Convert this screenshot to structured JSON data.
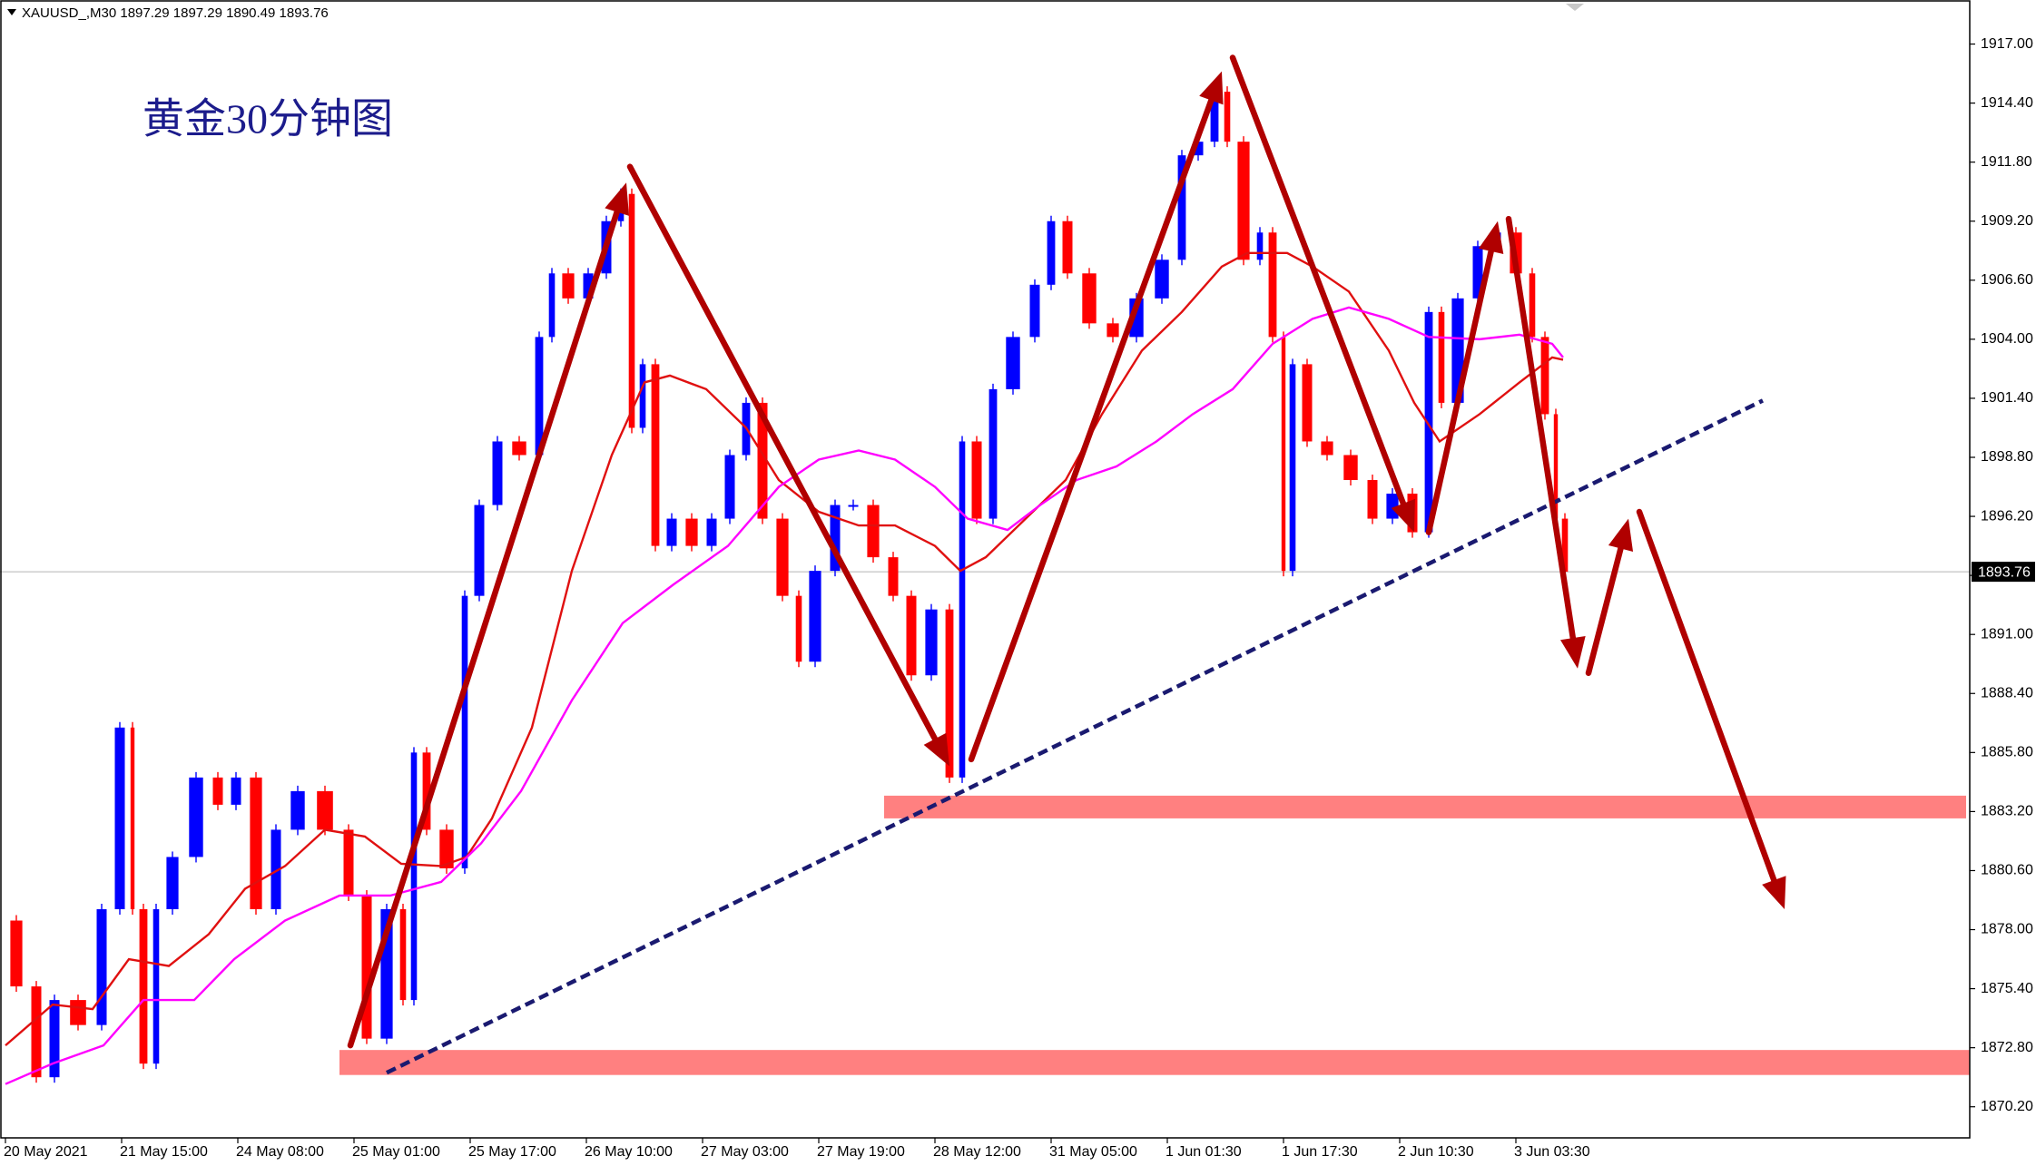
{
  "chart_data": {
    "type": "candlestick",
    "title": "XAUUSD_,M30  1897.29 1897.29 1890.49 1893.76",
    "annotation": "黄金30分钟图",
    "xlim": [
      0,
      541
    ],
    "ylim": [
      1868.83,
      1918.94
    ],
    "xticks": [
      {
        "value": 0,
        "label": "20 May 2021"
      },
      {
        "value": 32,
        "label": "21 May 15:00"
      },
      {
        "value": 64,
        "label": "24 May 08:00"
      },
      {
        "value": 96,
        "label": "25 May 01:00"
      },
      {
        "value": 128,
        "label": "25 May 17:00"
      },
      {
        "value": 160,
        "label": "26 May 10:00"
      },
      {
        "value": 192,
        "label": "27 May 03:00"
      },
      {
        "value": 224,
        "label": "27 May 19:00"
      },
      {
        "value": 256,
        "label": "28 May 12:00"
      },
      {
        "value": 288,
        "label": "31 May 05:00"
      },
      {
        "value": 320,
        "label": "1 Jun 01:30"
      },
      {
        "value": 352,
        "label": "1 Jun 17:30"
      },
      {
        "value": 384,
        "label": "2 Jun 10:30"
      },
      {
        "value": 416,
        "label": "3 Jun 03:30"
      }
    ],
    "yticks": [
      {
        "value": 1870.2,
        "label": "1870.20"
      },
      {
        "value": 1872.8,
        "label": "1872.80"
      },
      {
        "value": 1875.4,
        "label": "1875.40"
      },
      {
        "value": 1878,
        "label": "1878.00"
      },
      {
        "value": 1880.6,
        "label": "1880.60"
      },
      {
        "value": 1883.2,
        "label": "1883.20"
      },
      {
        "value": 1885.8,
        "label": "1885.80"
      },
      {
        "value": 1888.4,
        "label": "1888.40"
      },
      {
        "value": 1891,
        "label": "1891.00"
      },
      {
        "value": 1893.6,
        "label": "1893.60"
      },
      {
        "value": 1896.2,
        "label": "1896.20"
      },
      {
        "value": 1898.8,
        "label": "1898.80"
      },
      {
        "value": 1901.4,
        "label": "1901.40"
      },
      {
        "value": 1904,
        "label": "1904.00"
      },
      {
        "value": 1906.6,
        "label": "1906.60"
      },
      {
        "value": 1909.2,
        "label": "1909.20"
      },
      {
        "value": 1911.8,
        "label": "1911.80"
      },
      {
        "value": 1914.4,
        "label": "1914.40"
      },
      {
        "value": 1917,
        "label": "1917.00"
      }
    ],
    "current_price": 1893.76,
    "up_color": "#0000ff",
    "down_color": "#ff0000",
    "price": {
      "x": [
        0,
        6,
        11,
        16,
        24,
        29,
        34,
        36,
        40,
        43,
        49,
        56,
        61,
        66,
        72,
        77,
        84,
        92,
        97,
        102,
        108,
        111,
        114,
        118,
        125,
        128,
        133,
        138,
        145,
        149,
        152,
        158,
        163,
        168,
        171,
        174,
        177,
        181,
        186,
        192,
        197,
        202,
        206,
        211,
        217,
        220,
        226,
        231,
        236,
        242,
        247,
        252,
        258,
        262,
        265,
        270,
        274,
        281,
        286,
        290,
        295,
        302,
        308,
        315,
        322,
        326,
        331,
        335,
        338,
        344,
        347,
        351,
        353,
        356,
        361,
        367,
        374,
        379,
        385,
        390,
        394,
        397,
        403,
        408,
        413,
        419,
        422,
        426,
        428,
        431
      ],
      "values": [
        1878.4,
        1875.5,
        1871.5,
        1874.9,
        1873.8,
        1878.9,
        1886.9,
        1878.9,
        1872.1,
        1878.9,
        1881.2,
        1884.7,
        1883.5,
        1884.7,
        1878.9,
        1882.4,
        1884.1,
        1882.4,
        1879.5,
        1873.2,
        1878.9,
        1874.9,
        1885.8,
        1882.4,
        1880.7,
        1892.7,
        1896.7,
        1899.5,
        1898.9,
        1904.1,
        1906.9,
        1905.8,
        1906.9,
        1909.2,
        1910.4,
        1900.1,
        1902.9,
        1894.9,
        1896.1,
        1894.9,
        1896.1,
        1898.9,
        1901.2,
        1896.1,
        1892.7,
        1889.8,
        1893.8,
        1896.7,
        1896.7,
        1894.4,
        1892.7,
        1889.2,
        1892.1,
        1884.7,
        1899.5,
        1896.1,
        1901.8,
        1904.1,
        1906.4,
        1909.2,
        1906.9,
        1904.7,
        1904.1,
        1905.8,
        1907.5,
        1912.1,
        1912.7,
        1914.9,
        1912.7,
        1907.5,
        1908.7,
        1904.1,
        1893.8,
        1902.9,
        1899.5,
        1898.9,
        1897.8,
        1896.1,
        1897.2,
        1895.5,
        1905.2,
        1901.2,
        1905.8,
        1908.1,
        1908.7,
        1906.9,
        1904.1,
        1900.7,
        1896.1,
        1893.76
      ]
    },
    "series": [
      {
        "color": "#e01010",
        "x": [
          0,
          13,
          24,
          34,
          45,
          56,
          66,
          77,
          88,
          99,
          109,
          120,
          127,
          134,
          145,
          156,
          167,
          176,
          183,
          193,
          204,
          213,
          224,
          235,
          245,
          256,
          263,
          270,
          281,
          292,
          302,
          313,
          324,
          335,
          342,
          353,
          360,
          370,
          381,
          388,
          395,
          406,
          417,
          426,
          429
        ],
        "values": [
          1872.9,
          1874.7,
          1874.5,
          1876.7,
          1876.4,
          1877.8,
          1879.8,
          1880.8,
          1882.4,
          1882.1,
          1880.9,
          1880.8,
          1881.2,
          1882.9,
          1886.9,
          1893.8,
          1898.9,
          1902.1,
          1902.4,
          1901.8,
          1900.1,
          1897.8,
          1896.4,
          1895.8,
          1895.8,
          1894.9,
          1893.8,
          1894.4,
          1896.1,
          1897.8,
          1900.7,
          1903.5,
          1905.2,
          1907.2,
          1907.8,
          1907.8,
          1907.2,
          1906.1,
          1903.5,
          1901.2,
          1899.5,
          1900.7,
          1902.1,
          1903.2,
          1903.1
        ]
      },
      {
        "color": "#ff00ff",
        "x": [
          0,
          13,
          27,
          38,
          52,
          63,
          77,
          92,
          106,
          120,
          131,
          142,
          156,
          170,
          184,
          199,
          213,
          224,
          235,
          245,
          256,
          265,
          276,
          285,
          295,
          306,
          317,
          327,
          338,
          349,
          360,
          370,
          381,
          392,
          406,
          417,
          426,
          429
        ],
        "values": [
          1871.2,
          1872.1,
          1872.9,
          1874.9,
          1874.9,
          1876.7,
          1878.4,
          1879.5,
          1879.5,
          1880.1,
          1881.8,
          1884.1,
          1888.1,
          1891.5,
          1893.2,
          1894.9,
          1897.5,
          1898.7,
          1899.1,
          1898.7,
          1897.5,
          1896.1,
          1895.6,
          1896.7,
          1897.8,
          1898.4,
          1899.5,
          1900.7,
          1901.8,
          1903.8,
          1904.9,
          1905.4,
          1904.9,
          1904.1,
          1904.0,
          1904.2,
          1903.8,
          1903.2
        ]
      }
    ],
    "zones": [
      {
        "x": [
          242,
          540
        ],
        "values": [
          1882.9,
          1883.9
        ],
        "color": "#ff8080"
      },
      {
        "x": [
          92,
          541
        ],
        "values": [
          1871.6,
          1872.7
        ],
        "color": "#ff8080"
      }
    ],
    "trendline": {
      "x": [
        105,
        484
      ],
      "values": [
        1871.7,
        1901.3
      ],
      "color": "#1a1a70"
    },
    "arrow_color": "#b00000",
    "arrows": [
      {
        "x": [
          95,
          171
        ],
        "values": [
          1872.9,
          1910.9
        ]
      },
      {
        "x": [
          172,
          260
        ],
        "values": [
          1911.6,
          1885.2
        ]
      },
      {
        "x": [
          266,
          335
        ],
        "values": [
          1885.5,
          1915.8
        ]
      },
      {
        "x": [
          338,
          388
        ],
        "values": [
          1916.4,
          1895.5
        ]
      },
      {
        "x": [
          392,
          411
        ],
        "values": [
          1895.5,
          1909.2
        ]
      },
      {
        "x": [
          414,
          433
        ],
        "values": [
          1909.3,
          1889.5
        ]
      },
      {
        "x": [
          436,
          447
        ],
        "values": [
          1889.3,
          1896.1
        ]
      },
      {
        "x": [
          450,
          490
        ],
        "values": [
          1896.4,
          1878.9
        ]
      }
    ]
  }
}
